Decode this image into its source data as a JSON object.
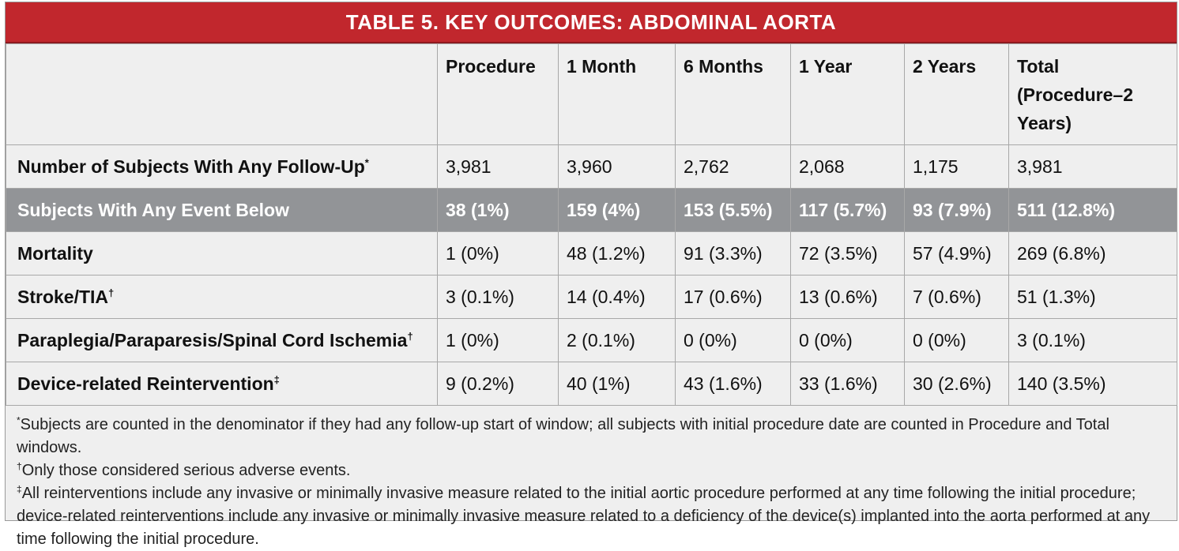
{
  "table": {
    "title": "TABLE 5.  KEY OUTCOMES: ABDOMINAL AORTA",
    "columns": [
      "",
      "Procedure",
      "1 Month",
      "6 Months",
      "1 Year",
      "2 Years",
      "Total (Procedure–2 Years)"
    ],
    "rows": [
      {
        "label": "Number of Subjects With Any Follow-Up",
        "mark": "*",
        "values": [
          "3,981",
          "3,960",
          "2,762",
          "2,068",
          "1,175",
          "3,981"
        ],
        "highlight": false
      },
      {
        "label": "Subjects With Any Event Below",
        "mark": "",
        "values": [
          "38 (1%)",
          "159 (4%)",
          "153 (5.5%)",
          "117 (5.7%)",
          "93 (7.9%)",
          "511 (12.8%)"
        ],
        "highlight": true
      },
      {
        "label": "Mortality",
        "mark": "",
        "values": [
          "1 (0%)",
          "48 (1.2%)",
          "91 (3.3%)",
          "72 (3.5%)",
          "57 (4.9%)",
          "269 (6.8%)"
        ],
        "highlight": false
      },
      {
        "label": "Stroke/TIA",
        "mark": "†",
        "values": [
          "3 (0.1%)",
          "14 (0.4%)",
          "17 (0.6%)",
          "13 (0.6%)",
          "7 (0.6%)",
          "51 (1.3%)"
        ],
        "highlight": false
      },
      {
        "label": "Paraplegia/Paraparesis/Spinal Cord Ischemia",
        "mark": "†",
        "values": [
          "1 (0%)",
          "2 (0.1%)",
          "0 (0%)",
          "0 (0%)",
          "0 (0%)",
          "3 (0.1%)"
        ],
        "highlight": false
      },
      {
        "label": "Device-related Reintervention",
        "mark": "‡",
        "values": [
          "9 (0.2%)",
          "40 (1%)",
          "43 (1.6%)",
          "33 (1.6%)",
          "30 (2.6%)",
          "140 (3.5%)"
        ],
        "highlight": false
      }
    ],
    "footnotes": [
      {
        "mark": "*",
        "text": "Subjects are counted in the denominator if they had any follow-up start of window; all subjects with initial procedure date are counted in Procedure and Total windows."
      },
      {
        "mark": "†",
        "text": "Only those considered serious adverse events."
      },
      {
        "mark": "‡",
        "text": "All reinterventions include any invasive or minimally invasive measure related to the initial aortic procedure performed at any time following the initial procedure; device-related reinterventions include any invasive or minimally invasive measure related to a deficiency of the device(s) implanted into the aorta performed at any time following the initial procedure."
      }
    ],
    "colors": {
      "title_background": "#c1272d",
      "highlight_row_background": "#929497",
      "panel_background": "#efefef",
      "grid_line": "#a8a8a8"
    }
  }
}
